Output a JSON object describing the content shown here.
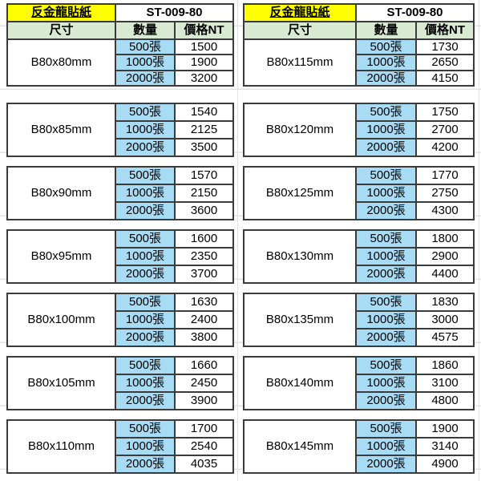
{
  "sheet": {
    "product_name": "反金龍貼紙",
    "product_code": "ST-009-80",
    "column_headers": {
      "size": "尺寸",
      "qty": "數量",
      "price": "價格NT"
    },
    "columns": [
      {
        "blocks": [
          {
            "size": "B80x80mm",
            "rows": [
              {
                "qty": "500張",
                "price": "1500"
              },
              {
                "qty": "1000張",
                "price": "1900"
              },
              {
                "qty": "2000張",
                "price": "3200"
              }
            ]
          },
          {
            "size": "B80x85mm",
            "rows": [
              {
                "qty": "500張",
                "price": "1540"
              },
              {
                "qty": "1000張",
                "price": "2125"
              },
              {
                "qty": "2000張",
                "price": "3500"
              }
            ]
          },
          {
            "size": "B80x90mm",
            "rows": [
              {
                "qty": "500張",
                "price": "1570"
              },
              {
                "qty": "1000張",
                "price": "2150"
              },
              {
                "qty": "2000張",
                "price": "3600"
              }
            ]
          },
          {
            "size": "B80x95mm",
            "rows": [
              {
                "qty": "500張",
                "price": "1600"
              },
              {
                "qty": "1000張",
                "price": "2350"
              },
              {
                "qty": "2000張",
                "price": "3700"
              }
            ]
          },
          {
            "size": "B80x100mm",
            "rows": [
              {
                "qty": "500張",
                "price": "1630"
              },
              {
                "qty": "1000張",
                "price": "2400"
              },
              {
                "qty": "2000張",
                "price": "3800"
              }
            ]
          },
          {
            "size": "B80x105mm",
            "rows": [
              {
                "qty": "500張",
                "price": "1660"
              },
              {
                "qty": "1000張",
                "price": "2450"
              },
              {
                "qty": "2000張",
                "price": "3900"
              }
            ]
          },
          {
            "size": "B80x110mm",
            "rows": [
              {
                "qty": "500張",
                "price": "1700"
              },
              {
                "qty": "1000張",
                "price": "2540"
              },
              {
                "qty": "2000張",
                "price": "4035"
              }
            ]
          }
        ]
      },
      {
        "blocks": [
          {
            "size": "B80x115mm",
            "rows": [
              {
                "qty": "500張",
                "price": "1730"
              },
              {
                "qty": "1000張",
                "price": "2650"
              },
              {
                "qty": "2000張",
                "price": "4150"
              }
            ]
          },
          {
            "size": "B80x120mm",
            "rows": [
              {
                "qty": "500張",
                "price": "1750"
              },
              {
                "qty": "1000張",
                "price": "2700"
              },
              {
                "qty": "2000張",
                "price": "4200"
              }
            ]
          },
          {
            "size": "B80x125mm",
            "rows": [
              {
                "qty": "500張",
                "price": "1770"
              },
              {
                "qty": "1000張",
                "price": "2750"
              },
              {
                "qty": "2000張",
                "price": "4300"
              }
            ]
          },
          {
            "size": "B80x130mm",
            "rows": [
              {
                "qty": "500張",
                "price": "1800"
              },
              {
                "qty": "1000張",
                "price": "2900"
              },
              {
                "qty": "2000張",
                "price": "4400"
              }
            ]
          },
          {
            "size": "B80x135mm",
            "rows": [
              {
                "qty": "500張",
                "price": "1830"
              },
              {
                "qty": "1000張",
                "price": "3000"
              },
              {
                "qty": "2000張",
                "price": "4575"
              }
            ]
          },
          {
            "size": "B80x140mm",
            "rows": [
              {
                "qty": "500張",
                "price": "1860"
              },
              {
                "qty": "1000張",
                "price": "3100"
              },
              {
                "qty": "2000張",
                "price": "4800"
              }
            ]
          },
          {
            "size": "B80x145mm",
            "rows": [
              {
                "qty": "500張",
                "price": "1900"
              },
              {
                "qty": "1000張",
                "price": "3140"
              },
              {
                "qty": "2000張",
                "price": "4900"
              }
            ]
          }
        ]
      }
    ]
  },
  "colors": {
    "product_cell_bg": "#ffff00",
    "header_cell_bg": "#d9ead3",
    "qty_cell_bg": "#a8dcf5",
    "table_border": "#3b3b3b",
    "gridline": "#e3e3e3",
    "text": "#000000"
  }
}
